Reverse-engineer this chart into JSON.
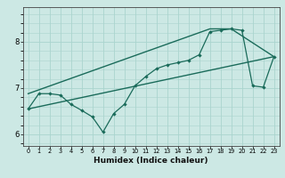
{
  "xlabel": "Humidex (Indice chaleur)",
  "bg_color": "#cce8e4",
  "line_color": "#1a6b5a",
  "grid_color": "#aad4ce",
  "xlim": [
    -0.5,
    23.5
  ],
  "ylim": [
    5.75,
    8.75
  ],
  "xticks": [
    0,
    1,
    2,
    3,
    4,
    5,
    6,
    7,
    8,
    9,
    10,
    11,
    12,
    13,
    14,
    15,
    16,
    17,
    18,
    19,
    20,
    21,
    22,
    23
  ],
  "yticks": [
    6,
    7,
    8
  ],
  "series1_x": [
    0,
    1,
    2,
    3,
    4,
    5,
    6,
    7,
    8,
    9,
    10,
    11,
    12,
    13,
    14,
    15,
    16,
    17,
    18,
    19,
    20,
    21,
    22,
    23
  ],
  "series1_y": [
    6.55,
    6.88,
    6.88,
    6.85,
    6.65,
    6.52,
    6.38,
    6.05,
    6.45,
    6.65,
    7.05,
    7.25,
    7.42,
    7.5,
    7.55,
    7.6,
    7.72,
    8.22,
    8.25,
    8.28,
    8.25,
    7.05,
    7.02,
    7.68
  ],
  "series2_x": [
    0,
    23
  ],
  "series2_y": [
    6.55,
    7.68
  ],
  "series3_x": [
    0,
    17,
    19,
    23
  ],
  "series3_y": [
    6.88,
    8.28,
    8.28,
    7.68
  ]
}
